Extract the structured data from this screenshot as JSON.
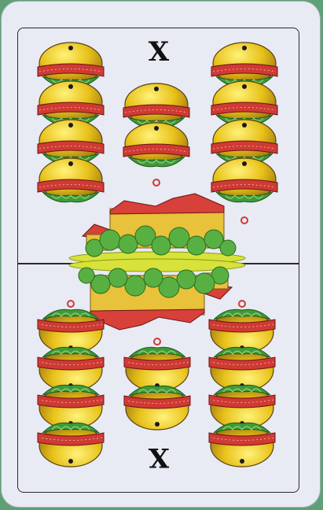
{
  "card": {
    "rank": "X",
    "suit_icon": "bell-icon",
    "pip_count": 10,
    "emblem": "castle-icon",
    "colors": {
      "card_face": "#e8eaf4",
      "frame": "#2a2a2a",
      "bell_gold": "#e8c21a",
      "bell_band": "#cf3a34",
      "bell_leaf": "#3f9a3a",
      "castle_wall": "#e7c23a",
      "castle_roof": "#d8403a",
      "foliage": "#58b043",
      "background_table": "#5f9f78"
    }
  }
}
